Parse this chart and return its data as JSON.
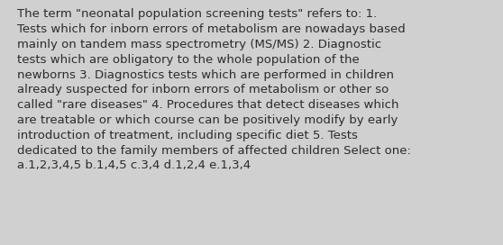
{
  "lines": [
    "The term \"neonatal population screening tests\" refers to: 1.",
    "Tests which for inborn errors of metabolism are nowadays based",
    "mainly on tandem mass spectrometry (MS/MS) 2. Diagnostic",
    "tests which are obligatory to the whole population of the",
    "newborns 3. Diagnostics tests which are performed in children",
    "already suspected for inborn errors of metabolism or other so",
    "called \"rare diseases\" 4. Procedures that detect diseases which",
    "are treatable or which course can be positively modify by early",
    "introduction of treatment, including specific diet 5. Tests",
    "dedicated to the family members of affected children Select one:",
    "a.1,2,3,4,5 b.1,4,5 c.3,4 d.1,2,4 e.1,3,4"
  ],
  "background_color": "#d0d0d0",
  "text_color": "#2b2b2b",
  "font_size": 9.5,
  "fig_width": 5.58,
  "fig_height": 2.72,
  "dpi": 100
}
